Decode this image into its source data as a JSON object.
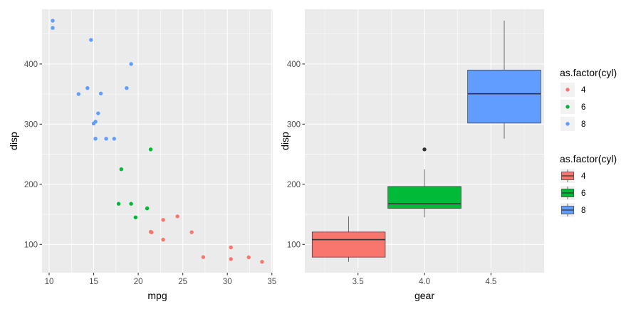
{
  "chart_data": [
    {
      "type": "scatter",
      "xlabel": "mpg",
      "ylabel": "disp",
      "xlim": [
        9.2,
        35.1
      ],
      "ylim": [
        53,
        491
      ],
      "x_ticks": [
        10,
        15,
        20,
        25,
        30,
        35
      ],
      "x_tick_labels": [
        "10",
        "15",
        "20",
        "25",
        "30",
        "35"
      ],
      "y_ticks": [
        100,
        200,
        300,
        400
      ],
      "y_tick_labels": [
        "100",
        "200",
        "300",
        "400"
      ],
      "grid": true,
      "color_by": "as.factor(cyl)",
      "points": [
        {
          "x": 21.0,
          "y": 160.0,
          "cyl": "6"
        },
        {
          "x": 21.0,
          "y": 160.0,
          "cyl": "6"
        },
        {
          "x": 22.8,
          "y": 108.0,
          "cyl": "4"
        },
        {
          "x": 21.4,
          "y": 258.0,
          "cyl": "6"
        },
        {
          "x": 18.7,
          "y": 360.0,
          "cyl": "8"
        },
        {
          "x": 18.1,
          "y": 225.0,
          "cyl": "6"
        },
        {
          "x": 14.3,
          "y": 360.0,
          "cyl": "8"
        },
        {
          "x": 24.4,
          "y": 146.7,
          "cyl": "4"
        },
        {
          "x": 22.8,
          "y": 140.8,
          "cyl": "4"
        },
        {
          "x": 19.2,
          "y": 167.6,
          "cyl": "6"
        },
        {
          "x": 17.8,
          "y": 167.6,
          "cyl": "6"
        },
        {
          "x": 16.4,
          "y": 275.8,
          "cyl": "8"
        },
        {
          "x": 17.3,
          "y": 275.8,
          "cyl": "8"
        },
        {
          "x": 15.2,
          "y": 275.8,
          "cyl": "8"
        },
        {
          "x": 10.4,
          "y": 472.0,
          "cyl": "8"
        },
        {
          "x": 10.4,
          "y": 460.0,
          "cyl": "8"
        },
        {
          "x": 14.7,
          "y": 440.0,
          "cyl": "8"
        },
        {
          "x": 32.4,
          "y": 78.7,
          "cyl": "4"
        },
        {
          "x": 30.4,
          "y": 75.7,
          "cyl": "4"
        },
        {
          "x": 33.9,
          "y": 71.1,
          "cyl": "4"
        },
        {
          "x": 21.5,
          "y": 120.1,
          "cyl": "4"
        },
        {
          "x": 15.5,
          "y": 318.0,
          "cyl": "8"
        },
        {
          "x": 15.2,
          "y": 304.0,
          "cyl": "8"
        },
        {
          "x": 13.3,
          "y": 350.0,
          "cyl": "8"
        },
        {
          "x": 19.2,
          "y": 400.0,
          "cyl": "8"
        },
        {
          "x": 27.3,
          "y": 79.0,
          "cyl": "4"
        },
        {
          "x": 26.0,
          "y": 120.3,
          "cyl": "4"
        },
        {
          "x": 30.4,
          "y": 95.1,
          "cyl": "4"
        },
        {
          "x": 15.8,
          "y": 351.0,
          "cyl": "8"
        },
        {
          "x": 19.7,
          "y": 145.0,
          "cyl": "6"
        },
        {
          "x": 15.0,
          "y": 301.0,
          "cyl": "8"
        },
        {
          "x": 21.4,
          "y": 121.0,
          "cyl": "4"
        }
      ]
    },
    {
      "type": "box",
      "xlabel": "gear",
      "ylabel": "disp",
      "xlim": [
        3.1,
        4.9
      ],
      "ylim": [
        53,
        491
      ],
      "x_ticks": [
        3.5,
        4.0,
        4.5
      ],
      "x_tick_labels": [
        "3.5",
        "4.0",
        "4.5"
      ],
      "y_ticks": [
        100,
        200,
        300,
        400
      ],
      "y_tick_labels": [
        "100",
        "200",
        "300",
        "400"
      ],
      "grid": true,
      "fill_by": "as.factor(cyl)",
      "boxes": [
        {
          "cyl": "4",
          "x_center": 3.43,
          "x_width": 0.55,
          "min": 71.1,
          "q1": 78.85,
          "median": 108.0,
          "q3": 120.65,
          "max": 146.7,
          "outliers": []
        },
        {
          "cyl": "6",
          "x_center": 4.0,
          "x_width": 0.55,
          "min": 145.0,
          "q1": 160.0,
          "median": 167.6,
          "q3": 196.3,
          "max": 225.0,
          "outliers": [
            258.0
          ]
        },
        {
          "cyl": "8",
          "x_center": 4.6,
          "x_width": 0.55,
          "min": 275.8,
          "q1": 301.75,
          "median": 350.5,
          "q3": 390.0,
          "max": 472.0,
          "outliers": []
        }
      ]
    }
  ],
  "colors": {
    "4": "#F8766D",
    "6": "#00BA38",
    "8": "#619CFF"
  },
  "legends": [
    {
      "title": "as.factor(cyl)",
      "kind": "point",
      "items": [
        {
          "key": "4",
          "label": "4"
        },
        {
          "key": "6",
          "label": "6"
        },
        {
          "key": "8",
          "label": "8"
        }
      ]
    },
    {
      "title": "as.factor(cyl)",
      "kind": "box",
      "items": [
        {
          "key": "4",
          "label": "4"
        },
        {
          "key": "6",
          "label": "6"
        },
        {
          "key": "8",
          "label": "8"
        }
      ]
    }
  ]
}
